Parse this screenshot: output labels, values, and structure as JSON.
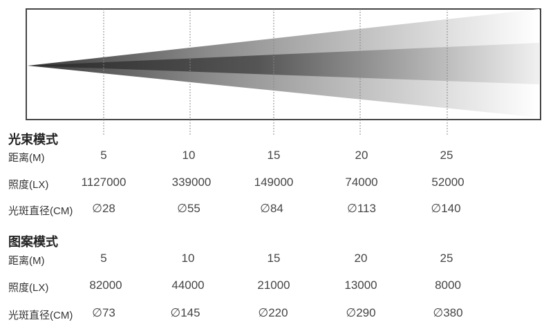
{
  "beam_mode": {
    "title": "光束模式",
    "distance_label": "距离(M)",
    "illuminance_label": "照度(LX)",
    "spot_label": "光斑直径(CM)",
    "distances": [
      "5",
      "10",
      "15",
      "20",
      "25"
    ],
    "illuminance": [
      "1127000",
      "339000",
      "149000",
      "74000",
      "52000"
    ],
    "spot": [
      "∅28",
      "∅55",
      "∅84",
      "∅113",
      "∅140"
    ]
  },
  "pattern_mode": {
    "title": "图案模式",
    "distance_label": "距离(M)",
    "illuminance_label": "照度(LX)",
    "spot_label": "光斑直径(CM)",
    "distances": [
      "5",
      "10",
      "15",
      "20",
      "25"
    ],
    "illuminance": [
      "82000",
      "44000",
      "21000",
      "13000",
      "8000"
    ],
    "spot": [
      "∅73",
      "∅145",
      "∅220",
      "∅290",
      "∅380"
    ]
  },
  "colors": {
    "beam_dark": "#3a3a3a",
    "beam_light": "#ffffff",
    "frame": "#444444",
    "marker": "#888888"
  }
}
